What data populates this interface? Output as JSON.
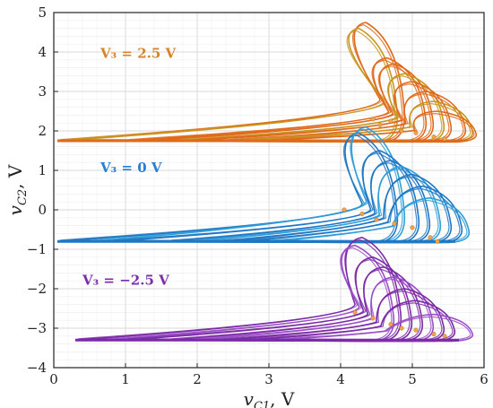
{
  "chart_data": {
    "type": "line",
    "xlabel": "v_{C1}, V",
    "ylabel": "v_{C2}, V",
    "xlim": [
      0,
      6
    ],
    "ylim": [
      -4,
      5
    ],
    "x_ticks": [
      0,
      1,
      2,
      3,
      4,
      5,
      6
    ],
    "y_ticks": [
      -4,
      -3,
      -2,
      -1,
      0,
      1,
      2,
      3,
      4,
      5
    ],
    "grid": true,
    "annotations": [
      {
        "text": "V₃ = 2.5 V",
        "x": 0.65,
        "y": 3.85,
        "color": "#d6842a"
      },
      {
        "text": "V₃ = 0 V",
        "x": 0.65,
        "y": 0.95,
        "color": "#2a7fd0"
      },
      {
        "text": "V₃ = −2.5 V",
        "x": 0.4,
        "y": -1.9,
        "color": "#7a2ea8"
      }
    ],
    "series": [
      {
        "color": "#e06a1c",
        "secondary_color": "#c7961f",
        "baseline": 1.75,
        "trough_x": 4.55,
        "loops": [
          {
            "x_start": 0.05,
            "x_end": 4.9,
            "peak": 4.75
          },
          {
            "x_start": 0.1,
            "x_end": 4.8,
            "peak": 4.6
          },
          {
            "x_start": 1.0,
            "x_end": 5.2,
            "peak": 3.85
          },
          {
            "x_start": 1.3,
            "x_end": 5.3,
            "peak": 3.7
          },
          {
            "x_start": 1.7,
            "x_end": 5.45,
            "peak": 3.45
          },
          {
            "x_start": 1.9,
            "x_end": 5.55,
            "peak": 3.25
          },
          {
            "x_start": 2.4,
            "x_end": 5.75,
            "peak": 3.0
          },
          {
            "x_start": 2.6,
            "x_end": 5.85,
            "peak": 2.75
          },
          {
            "x_start": 3.0,
            "x_end": 5.9,
            "peak": 2.5
          }
        ],
        "points": [
          {
            "x": 4.45,
            "y": 2.3
          },
          {
            "x": 4.55,
            "y": 2.15
          },
          {
            "x": 4.7,
            "y": 2.25
          },
          {
            "x": 4.85,
            "y": 2.0
          },
          {
            "x": 5.05,
            "y": 1.95
          },
          {
            "x": 5.3,
            "y": 1.85
          },
          {
            "x": 5.45,
            "y": 1.8
          }
        ]
      },
      {
        "color": "#1f77c4",
        "secondary_color": "#2f9fd8",
        "baseline": -0.8,
        "trough_x": 4.3,
        "loops": [
          {
            "x_start": 0.05,
            "x_end": 4.8,
            "peak": 1.95
          },
          {
            "x_start": 0.5,
            "x_end": 4.9,
            "peak": 2.1
          },
          {
            "x_start": 0.8,
            "x_end": 5.1,
            "peak": 1.5
          },
          {
            "x_start": 1.6,
            "x_end": 5.25,
            "peak": 1.25
          },
          {
            "x_start": 1.9,
            "x_end": 5.4,
            "peak": 1.1
          },
          {
            "x_start": 2.3,
            "x_end": 5.55,
            "peak": 0.9
          },
          {
            "x_start": 2.6,
            "x_end": 5.7,
            "peak": 0.6
          },
          {
            "x_start": 3.0,
            "x_end": 5.8,
            "peak": 0.3
          }
        ],
        "points": [
          {
            "x": 4.05,
            "y": 0.0
          },
          {
            "x": 4.3,
            "y": -0.1
          },
          {
            "x": 4.5,
            "y": -0.25
          },
          {
            "x": 4.75,
            "y": -0.35
          },
          {
            "x": 5.0,
            "y": -0.45
          },
          {
            "x": 5.25,
            "y": -0.7
          },
          {
            "x": 5.35,
            "y": -0.8
          }
        ]
      },
      {
        "color": "#7b2ba6",
        "secondary_color": "#9b4fc8",
        "baseline": -3.3,
        "trough_x": 4.2,
        "loops": [
          {
            "x_start": 0.3,
            "x_end": 4.85,
            "peak": -0.7
          },
          {
            "x_start": 0.7,
            "x_end": 4.75,
            "peak": -0.9
          },
          {
            "x_start": 1.0,
            "x_end": 5.0,
            "peak": -1.2
          },
          {
            "x_start": 1.6,
            "x_end": 5.15,
            "peak": -1.45
          },
          {
            "x_start": 1.9,
            "x_end": 5.3,
            "peak": -1.7
          },
          {
            "x_start": 2.3,
            "x_end": 5.45,
            "peak": -2.0
          },
          {
            "x_start": 2.7,
            "x_end": 5.6,
            "peak": -2.3
          },
          {
            "x_start": 3.1,
            "x_end": 5.85,
            "peak": -2.65
          }
        ],
        "points": [
          {
            "x": 4.2,
            "y": -2.6
          },
          {
            "x": 4.45,
            "y": -2.75
          },
          {
            "x": 4.7,
            "y": -2.9
          },
          {
            "x": 4.85,
            "y": -3.0
          },
          {
            "x": 5.05,
            "y": -3.05
          },
          {
            "x": 5.3,
            "y": -3.15
          },
          {
            "x": 5.45,
            "y": -3.2
          }
        ]
      }
    ]
  }
}
